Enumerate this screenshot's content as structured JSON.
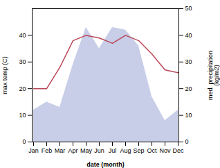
{
  "chart_data": {
    "type": "line",
    "xlabel": "date (month)",
    "ylabel": "max temp (C)",
    "y2label": "med. precipitation\n(kg/m2)",
    "categories": [
      "Jan",
      "Feb",
      "Mar",
      "Apr",
      "May",
      "Jun",
      "Jul",
      "Aug",
      "Sep",
      "Oct",
      "Nov",
      "Dec"
    ],
    "series": [
      {
        "type": "area",
        "axis": "y2",
        "color": "#c8cde8",
        "values": [
          12,
          15,
          13,
          29,
          43,
          35,
          43,
          42,
          36,
          17,
          8,
          12
        ]
      },
      {
        "type": "line",
        "color": "#b94858",
        "values": [
          20,
          20,
          28,
          38,
          40,
          39,
          37,
          40,
          38,
          33,
          27,
          26
        ]
      }
    ],
    "ylim": [
      0,
      50
    ],
    "yticks": [
      0,
      10,
      20,
      30,
      40
    ],
    "y2lim": [
      0,
      50
    ],
    "y2ticks": [
      0,
      10,
      20,
      30,
      40,
      50
    ]
  }
}
